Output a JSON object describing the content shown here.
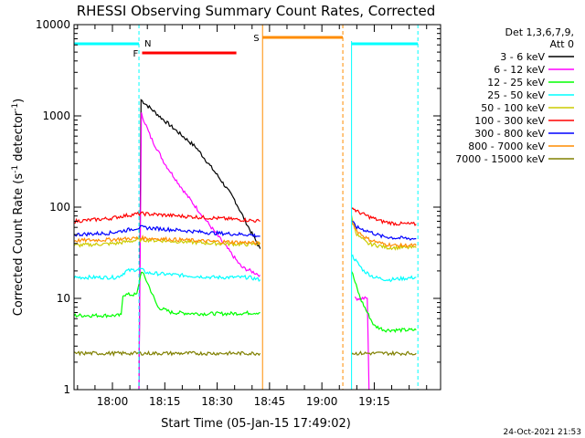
{
  "chart_data": {
    "type": "line",
    "title": "RHESSI Observing Summary Count Rates, Corrected",
    "xlabel": "Start Time (05-Jan-15 17:49:02)",
    "ylabel_main": "Corrected Count Rate (s",
    "ylabel_sup1": "-1",
    "ylabel_mid": " detector",
    "ylabel_sup2": "-1",
    "ylabel_end": ")",
    "y_scale": "log",
    "ylim": [
      1,
      10000
    ],
    "xlim_minutes": [
      0,
      105
    ],
    "x_ticks": [
      {
        "label": "18:00",
        "t": 11
      },
      {
        "label": "18:15",
        "t": 26
      },
      {
        "label": "18:30",
        "t": 41
      },
      {
        "label": "18:45",
        "t": 56
      },
      {
        "label": "19:00",
        "t": 71
      },
      {
        "label": "19:15",
        "t": 86
      }
    ],
    "y_ticks": [
      {
        "label": "1",
        "v": 1
      },
      {
        "label": "10",
        "v": 10
      },
      {
        "label": "100",
        "v": 100
      },
      {
        "label": "1000",
        "v": 1000
      },
      {
        "label": "10000",
        "v": 10000
      }
    ],
    "legend": {
      "placement": "top-right-outside",
      "header1": "Det 1,3,6,7,9,",
      "header2": "Att 0"
    },
    "series": [
      {
        "name": "3 - 6 keV",
        "color": "#000000",
        "segments": [
          [
            [
              18.6,
              1
            ],
            [
              19.2,
              1500
            ],
            [
              25,
              950
            ],
            [
              35,
              450
            ],
            [
              42,
              200
            ],
            [
              46,
              120
            ],
            [
              50,
              60
            ],
            [
              53.3,
              35
            ]
          ]
        ]
      },
      {
        "name": "6 - 12 keV",
        "color": "#ff00ff",
        "segments": [
          [
            [
              18.6,
              1
            ],
            [
              19.3,
              1050
            ],
            [
              22,
              580
            ],
            [
              26,
              300
            ],
            [
              32,
              140
            ],
            [
              38,
              70
            ],
            [
              44,
              35
            ],
            [
              48,
              22
            ],
            [
              53.3,
              18
            ]
          ],
          [
            [
              80.5,
              10
            ],
            [
              82,
              10
            ],
            [
              84,
              10
            ],
            [
              84.5,
              1
            ]
          ]
        ]
      },
      {
        "name": "12 - 25 keV",
        "color": "#00ff00",
        "segments": [
          [
            [
              0,
              6.5
            ],
            [
              12,
              6.5
            ],
            [
              13.5,
              6.5
            ],
            [
              14,
              11
            ],
            [
              18,
              11
            ],
            [
              19.3,
              20
            ],
            [
              21,
              15
            ],
            [
              24,
              8
            ],
            [
              28,
              7
            ],
            [
              36,
              6.8
            ],
            [
              44,
              6.8
            ],
            [
              53.3,
              7
            ]
          ],
          [
            [
              79.5,
              20
            ],
            [
              80.5,
              15
            ],
            [
              82,
              10
            ],
            [
              84,
              7
            ],
            [
              86,
              5
            ],
            [
              89,
              4.5
            ],
            [
              98,
              4.5
            ]
          ]
        ]
      },
      {
        "name": "25 - 50 keV",
        "color": "#00ffff",
        "segments": [
          [
            [
              0,
              17
            ],
            [
              12,
              17
            ],
            [
              13.5,
              18
            ],
            [
              15,
              20
            ],
            [
              19,
              21
            ],
            [
              21,
              19
            ],
            [
              30,
              18
            ],
            [
              40,
              17
            ],
            [
              50,
              17
            ],
            [
              53.3,
              16
            ]
          ],
          [
            [
              79.5,
              30
            ],
            [
              81,
              25
            ],
            [
              83,
              20
            ],
            [
              86,
              17
            ],
            [
              90,
              16
            ],
            [
              98,
              17
            ]
          ]
        ]
      },
      {
        "name": "50 - 100 keV",
        "color": "#cccc00",
        "segments": [
          [
            [
              0,
              38
            ],
            [
              12,
              40
            ],
            [
              19,
              44
            ],
            [
              30,
              42
            ],
            [
              40,
              40
            ],
            [
              50,
              39
            ],
            [
              53.3,
              40
            ]
          ],
          [
            [
              79.5,
              80
            ],
            [
              81,
              50
            ],
            [
              84,
              40
            ],
            [
              90,
              36
            ],
            [
              98,
              36
            ]
          ]
        ]
      },
      {
        "name": "100 - 300 keV",
        "color": "#ff0000",
        "segments": [
          [
            [
              0,
              70
            ],
            [
              10,
              75
            ],
            [
              14,
              80
            ],
            [
              19,
              85
            ],
            [
              30,
              80
            ],
            [
              40,
              76
            ],
            [
              50,
              72
            ],
            [
              53.3,
              70
            ]
          ],
          [
            [
              79.5,
              100
            ],
            [
              81,
              90
            ],
            [
              84,
              80
            ],
            [
              88,
              70
            ],
            [
              92,
              66
            ],
            [
              98,
              65
            ]
          ]
        ]
      },
      {
        "name": "300 - 800 keV",
        "color": "#0000ff",
        "segments": [
          [
            [
              0,
              50
            ],
            [
              10,
              52
            ],
            [
              14,
              55
            ],
            [
              19,
              60
            ],
            [
              30,
              56
            ],
            [
              40,
              52
            ],
            [
              50,
              50
            ],
            [
              53.3,
              48
            ]
          ],
          [
            [
              79.5,
              70
            ],
            [
              81,
              60
            ],
            [
              84,
              55
            ],
            [
              88,
              48
            ],
            [
              92,
              46
            ],
            [
              98,
              45
            ]
          ]
        ]
      },
      {
        "name": "800 - 7000 keV",
        "color": "#ff8c00",
        "segments": [
          [
            [
              0,
              43
            ],
            [
              10,
              44
            ],
            [
              19,
              46
            ],
            [
              30,
              44
            ],
            [
              40,
              42
            ],
            [
              50,
              41
            ],
            [
              53.3,
              40
            ]
          ],
          [
            [
              79.5,
              70
            ],
            [
              81,
              55
            ],
            [
              84,
              45
            ],
            [
              88,
              40
            ],
            [
              92,
              38
            ],
            [
              98,
              38
            ]
          ]
        ]
      },
      {
        "name": "7000 - 15000 keV",
        "color": "#808000",
        "segments": [
          [
            [
              0,
              2.5
            ],
            [
              12,
              2.5
            ],
            [
              19,
              2.5
            ],
            [
              30,
              2.5
            ],
            [
              40,
              2.5
            ],
            [
              53.3,
              2.5
            ]
          ],
          [
            [
              79.5,
              2.5
            ],
            [
              85,
              2.5
            ],
            [
              92,
              2.5
            ],
            [
              98,
              2.5
            ]
          ]
        ]
      }
    ],
    "annotations": {
      "night_label": "N",
      "flare_label": "F",
      "saa_label": "S",
      "night_color": "#00ffff",
      "flare_color": "#ff0000",
      "saa_color": "#ff8c00",
      "night_intervals": [
        [
          0,
          18.6
        ],
        [
          79.5,
          98.5
        ]
      ],
      "flare_intervals": [
        [
          19.5,
          46.5
        ]
      ],
      "saa_intervals": [
        [
          54,
          77
        ]
      ],
      "night_edges": [
        18.6,
        98.5
      ],
      "night_solid": [
        79.5
      ],
      "saa_solid": [
        54
      ],
      "saa_dashed": [
        77
      ]
    }
  },
  "footer": {
    "timestamp": "24-Oct-2021 21:53"
  }
}
